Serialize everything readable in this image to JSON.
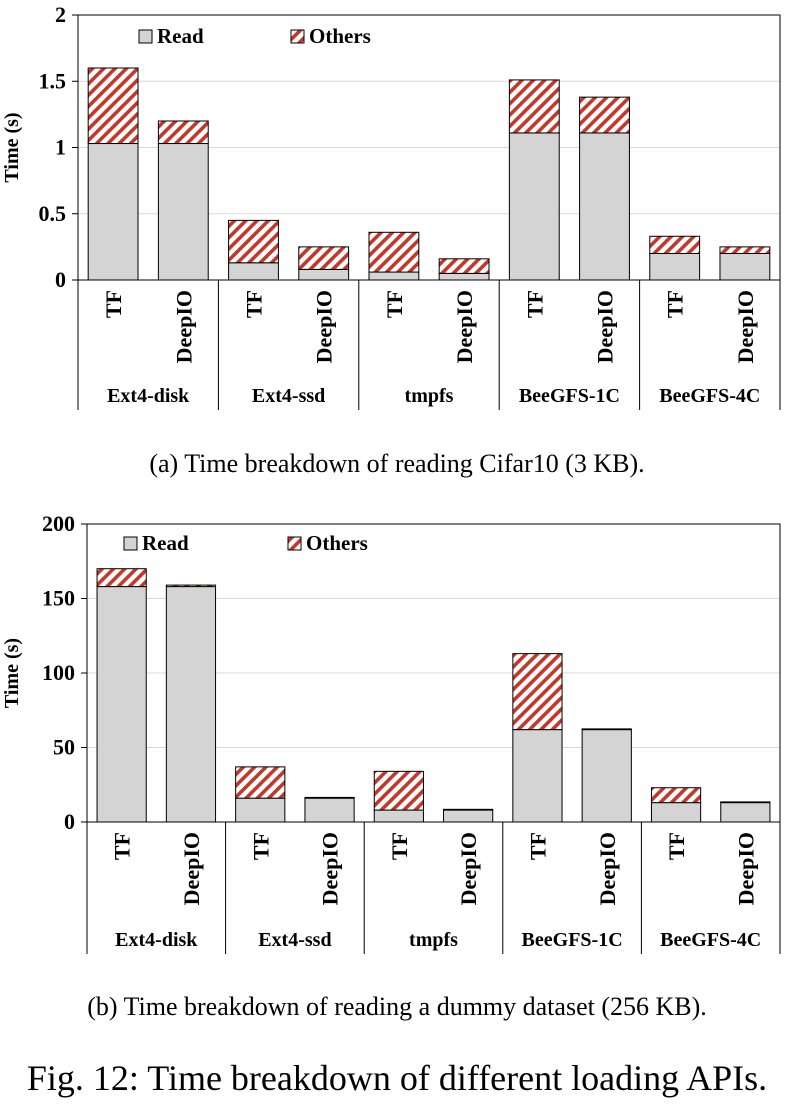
{
  "chart_data": [
    {
      "type": "bar",
      "stacked": true,
      "categories": [
        "TF",
        "DeepIO",
        "TF",
        "DeepIO",
        "TF",
        "DeepIO",
        "TF",
        "DeepIO",
        "TF",
        "DeepIO"
      ],
      "groups": [
        "Ext4-disk",
        "Ext4-ssd",
        "tmpfs",
        "BeeGFS-1C",
        "BeeGFS-4C"
      ],
      "series": [
        {
          "name": "Read",
          "values": [
            1.03,
            1.03,
            0.13,
            0.08,
            0.06,
            0.05,
            1.11,
            1.11,
            0.2,
            0.2
          ]
        },
        {
          "name": "Others",
          "values": [
            0.57,
            0.17,
            0.32,
            0.17,
            0.3,
            0.11,
            0.4,
            0.27,
            0.13,
            0.05
          ]
        }
      ],
      "ylabel": "Time (s)",
      "ylim": [
        0,
        2
      ],
      "yticks": [
        "0",
        "0.5",
        "1",
        "1.5",
        "2"
      ],
      "ytick_values": [
        0,
        0.5,
        1,
        1.5,
        2
      ],
      "grid": true,
      "legend": "top-left",
      "colors": {
        "read": "#d4d4d4",
        "others_stripe": "#c0392b",
        "grid": "#d9d9d9"
      }
    },
    {
      "type": "bar",
      "stacked": true,
      "categories": [
        "TF",
        "DeepIO",
        "TF",
        "DeepIO",
        "TF",
        "DeepIO",
        "TF",
        "DeepIO",
        "TF",
        "DeepIO"
      ],
      "groups": [
        "Ext4-disk",
        "Ext4-ssd",
        "tmpfs",
        "BeeGFS-1C",
        "BeeGFS-4C"
      ],
      "series": [
        {
          "name": "Read",
          "values": [
            158,
            158,
            16,
            16,
            8,
            8,
            62,
            62,
            13,
            13
          ]
        },
        {
          "name": "Others",
          "values": [
            12,
            1,
            21,
            0.5,
            26,
            0.5,
            51,
            0.5,
            10,
            0.5
          ]
        }
      ],
      "ylabel": "Time (s)",
      "ylim": [
        0,
        200
      ],
      "yticks": [
        "0",
        "50",
        "100",
        "150",
        "200"
      ],
      "ytick_values": [
        0,
        50,
        100,
        150,
        200
      ],
      "grid": true,
      "legend": "top-left",
      "colors": {
        "read": "#d4d4d4",
        "others_stripe": "#c0392b",
        "grid": "#d9d9d9"
      }
    }
  ],
  "captions": {
    "a": "(a) Time breakdown of reading Cifar10 (3 KB).",
    "b": "(b) Time breakdown of reading a dummy dataset (256 KB).",
    "figure": "Fig. 12: Time breakdown of different loading APIs."
  }
}
